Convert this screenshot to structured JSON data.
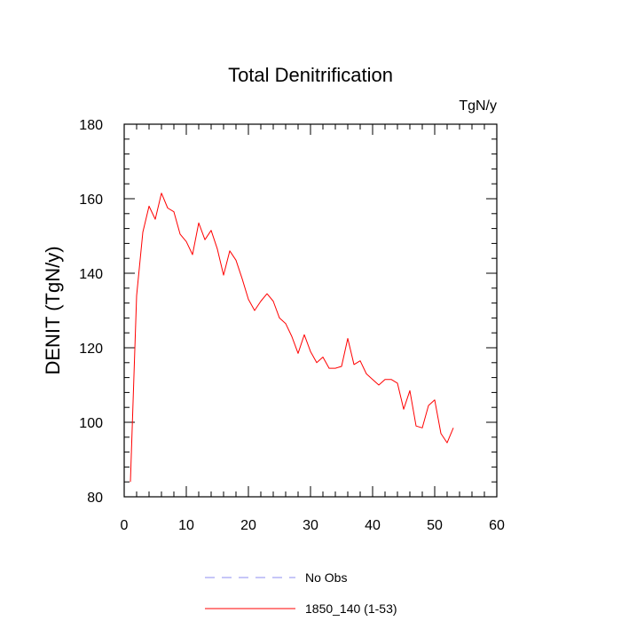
{
  "chart_data": {
    "type": "line",
    "title": "Total Denitrification",
    "units": "TgN/y",
    "xlabel": "",
    "ylabel": "DENIT  (TgN/y)",
    "xlim": [
      0,
      60
    ],
    "ylim": [
      80,
      180
    ],
    "xticks": [
      0,
      10,
      20,
      30,
      40,
      50,
      60
    ],
    "yticks": [
      80,
      100,
      120,
      140,
      160,
      180
    ],
    "grid": false,
    "series": [
      {
        "name": "No Obs",
        "style": "dashed",
        "color": "#8c8cf0",
        "x": [],
        "values": []
      },
      {
        "name": "1850_140 (1-53)",
        "style": "solid",
        "color": "#ff0000",
        "x": [
          1,
          2,
          3,
          4,
          5,
          6,
          7,
          8,
          9,
          10,
          11,
          12,
          13,
          14,
          15,
          16,
          17,
          18,
          19,
          20,
          21,
          22,
          23,
          24,
          25,
          26,
          27,
          28,
          29,
          30,
          31,
          32,
          33,
          34,
          35,
          36,
          37,
          38,
          39,
          40,
          41,
          42,
          43,
          44,
          45,
          46,
          47,
          48,
          49,
          50,
          51,
          52,
          53
        ],
        "values": [
          84,
          134,
          151,
          158,
          154.5,
          161.5,
          157.5,
          156.5,
          150.5,
          148.5,
          145,
          153.5,
          149,
          151.5,
          146.5,
          139.5,
          146,
          143.5,
          138.5,
          133,
          130,
          132.5,
          134.5,
          132.5,
          128,
          126.5,
          123,
          118.5,
          123.5,
          119,
          116,
          117.5,
          114.5,
          114.5,
          115,
          122.5,
          115.5,
          116.5,
          113,
          111.5,
          110,
          111.5,
          111.5,
          110.5,
          103.5,
          108.5,
          99,
          98.5,
          104.5,
          106,
          97,
          94.5,
          98.5
        ]
      }
    ],
    "legend": "bottom-center"
  }
}
